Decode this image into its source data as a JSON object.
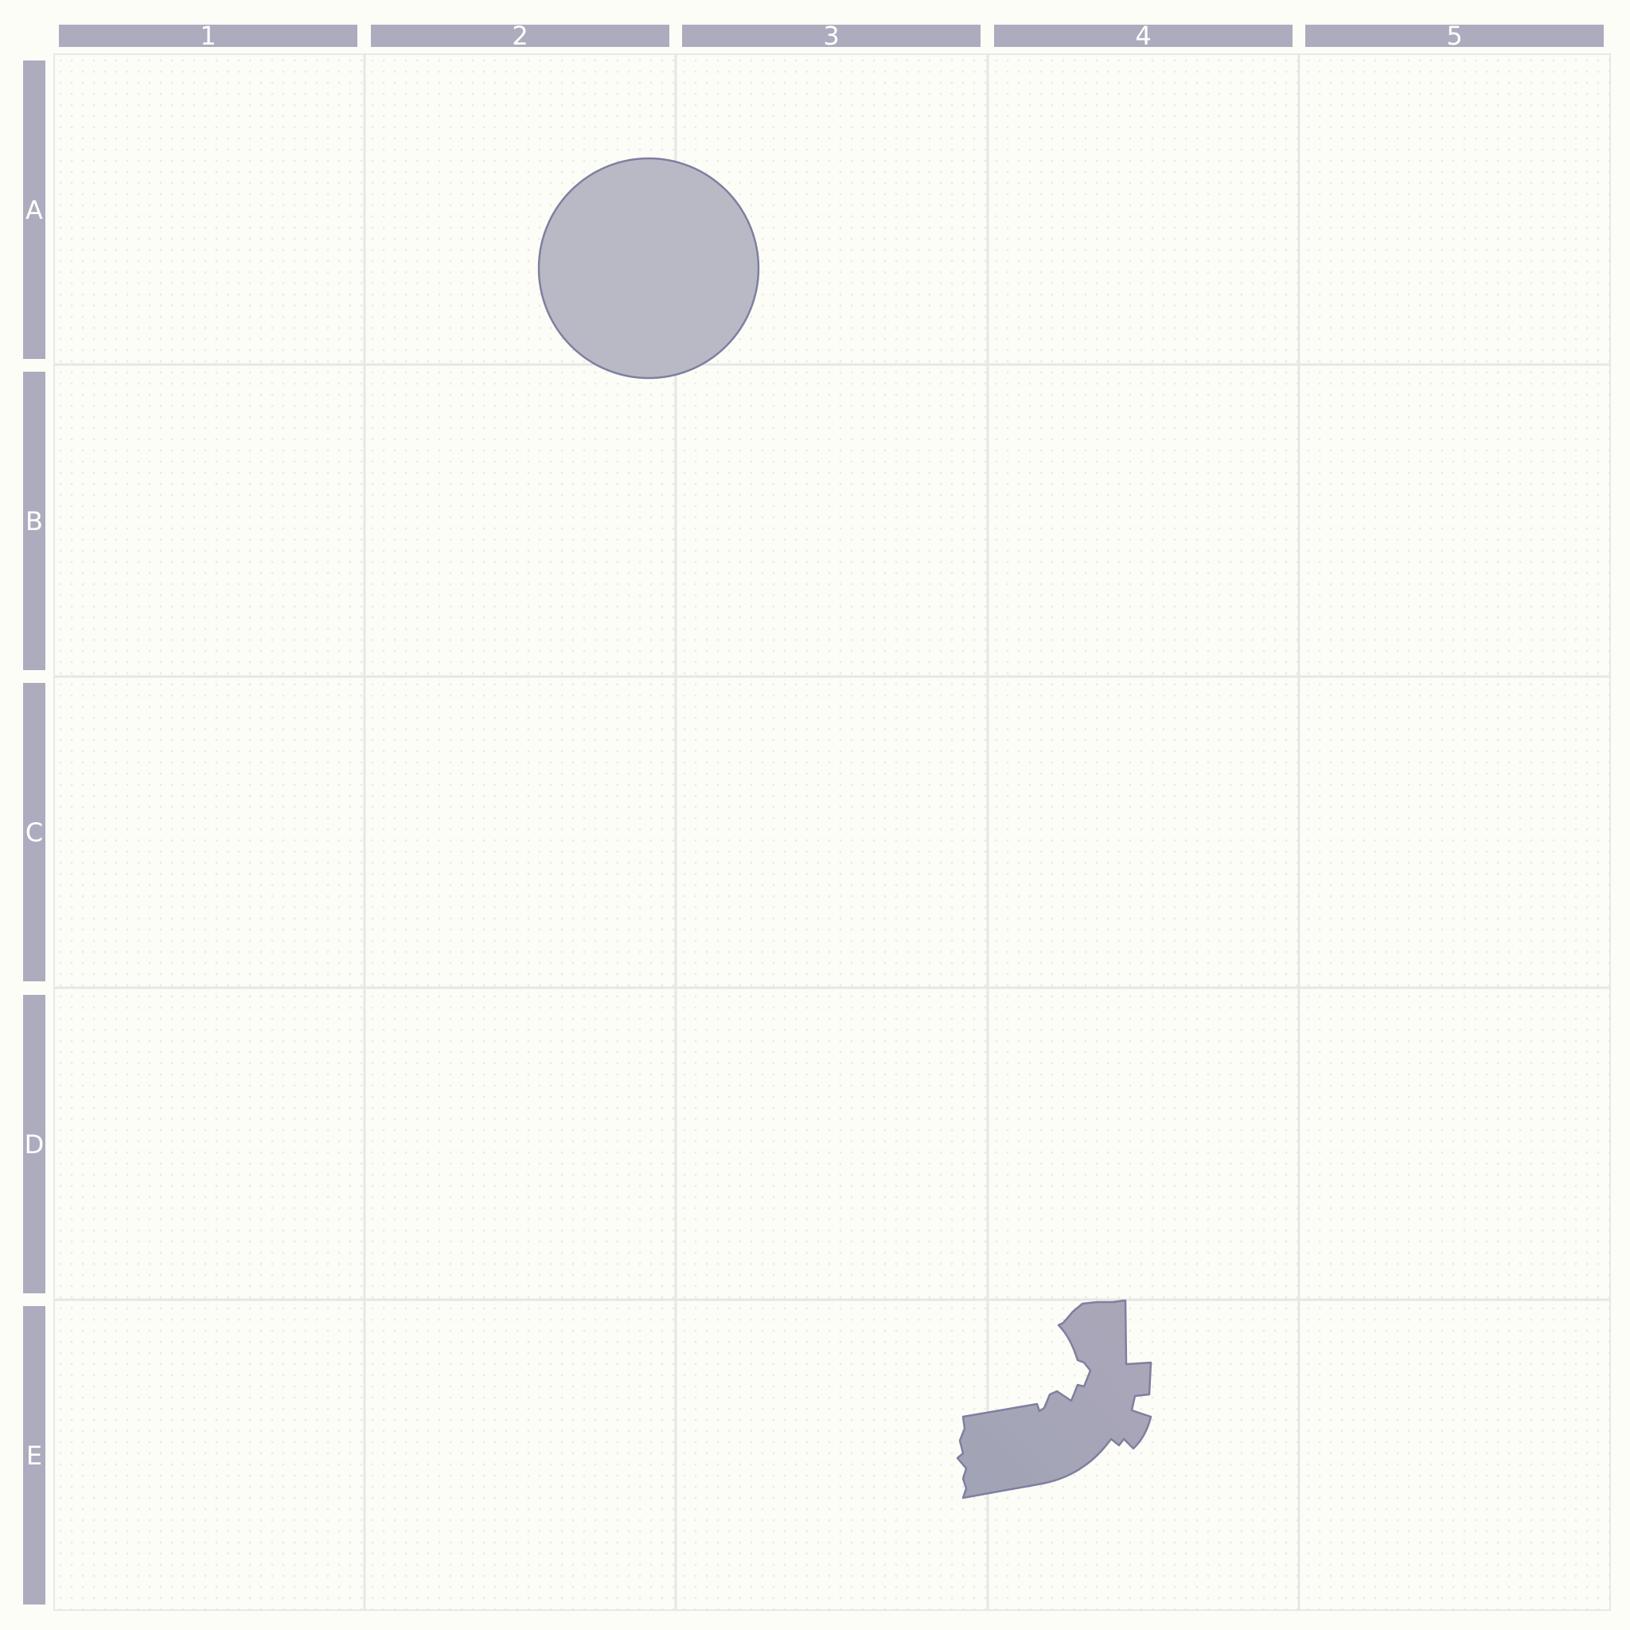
{
  "board": {
    "columns": [
      "1",
      "2",
      "3",
      "4",
      "5"
    ],
    "rows": [
      "A",
      "B",
      "C",
      "D",
      "E"
    ],
    "colors": {
      "header_fill": "#acacbe",
      "header_text": "#ffffff",
      "grid_line": "#e6e6e6",
      "background": "#fdfdf8",
      "piece_fill": "#b9b9c6",
      "piece_outline": "#7f7fa0",
      "piece_fill_dark": "#a4a4b8"
    },
    "pieces": [
      {
        "name": "disc-piece",
        "icon": "circle-icon",
        "cell": "A2"
      },
      {
        "name": "bent-pipe-piece",
        "icon": "bent-pipe-icon",
        "cell": "E4"
      }
    ]
  }
}
